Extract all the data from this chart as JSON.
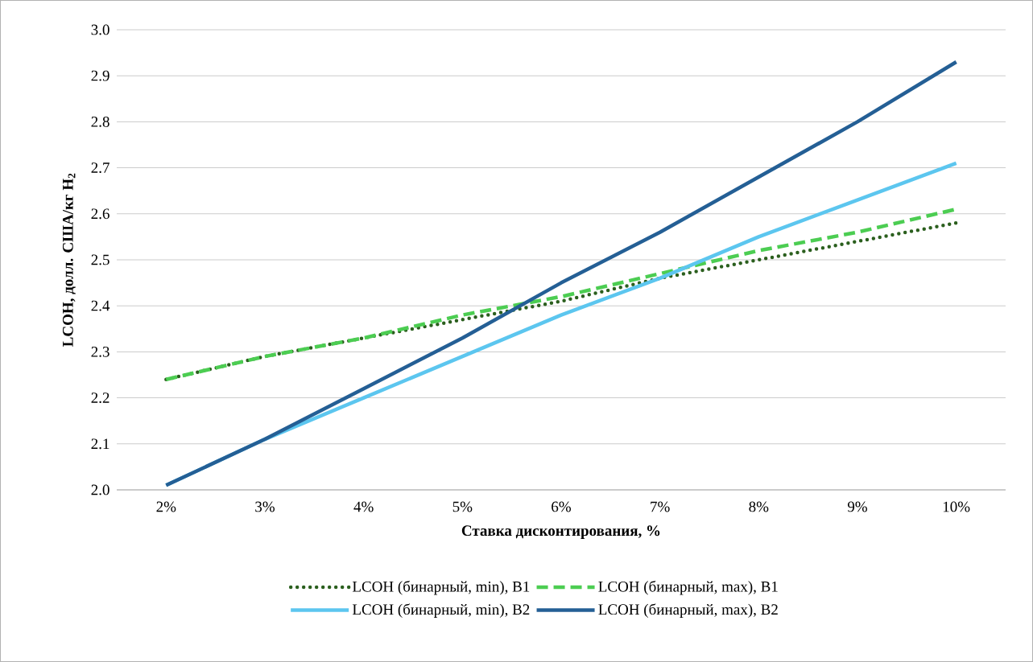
{
  "chart_data": {
    "type": "line",
    "xlabel": "Ставка дисконтирования, %",
    "ylabel": "LCOH, долл. США/кг H$_{2}$",
    "categories": [
      "2%",
      "3%",
      "4%",
      "5%",
      "6%",
      "7%",
      "8%",
      "9%",
      "10%"
    ],
    "series": [
      {
        "name": "LCOH (бинарный, min), B1",
        "color": "#2b5f1e",
        "line_style": "dotted",
        "values": [
          2.24,
          2.29,
          2.33,
          2.37,
          2.41,
          2.46,
          2.5,
          2.54,
          2.58
        ]
      },
      {
        "name": "LCOH (бинарный, max), B1",
        "color": "#4ccd52",
        "line_style": "dashed",
        "values": [
          2.24,
          2.29,
          2.33,
          2.38,
          2.42,
          2.47,
          2.52,
          2.56,
          2.61
        ]
      },
      {
        "name": "LCOH (бинарный, min), B2",
        "color": "#5cc6ef",
        "line_style": "solid",
        "values": [
          2.01,
          2.11,
          2.2,
          2.29,
          2.38,
          2.46,
          2.55,
          2.63,
          2.71
        ]
      },
      {
        "name": "LCOH (бинарный, max), B2",
        "color": "#245f95",
        "line_style": "solid",
        "values": [
          2.01,
          2.11,
          2.22,
          2.33,
          2.45,
          2.56,
          2.68,
          2.8,
          2.93
        ]
      }
    ],
    "ylim": [
      2.0,
      3.0
    ],
    "yticks": [
      {
        "value": 2.0,
        "label": "2.0"
      },
      {
        "value": 2.1,
        "label": "2.1"
      },
      {
        "value": 2.2,
        "label": "2.2"
      },
      {
        "value": 2.3,
        "label": "2.3"
      },
      {
        "value": 2.4,
        "label": "2.4"
      },
      {
        "value": 2.5,
        "label": "2.5"
      },
      {
        "value": 2.6,
        "label": "2.6"
      },
      {
        "value": 2.7,
        "label": "2.7"
      },
      {
        "value": 2.8,
        "label": "2.8"
      },
      {
        "value": 2.9,
        "label": "2.9"
      },
      {
        "value": 3.0,
        "label": "3.0"
      }
    ],
    "grid": "y",
    "legend": "bottom",
    "marker": "none"
  }
}
